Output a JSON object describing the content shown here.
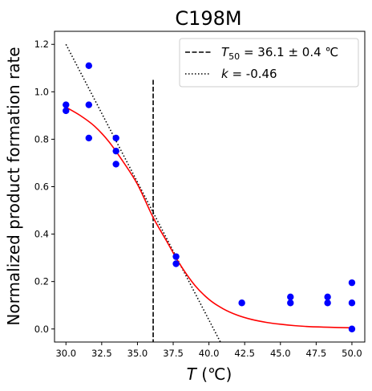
{
  "chart_data": {
    "type": "scatter",
    "title": "C198M",
    "xlabel_main": "T",
    "xlabel_unit": " (℃)",
    "ylabel": "Normalized product formation rate",
    "xlim": [
      29.2,
      50.9
    ],
    "ylim": [
      -0.055,
      1.255
    ],
    "x_ticks": [
      30.0,
      32.5,
      35.0,
      37.5,
      40.0,
      42.5,
      45.0,
      47.5,
      50.0
    ],
    "x_tick_labels": [
      "30.0",
      "32.5",
      "35.0",
      "37.5",
      "40.0",
      "42.5",
      "45.0",
      "47.5",
      "50.0"
    ],
    "y_ticks": [
      0.0,
      0.2,
      0.4,
      0.6,
      0.8,
      1.0,
      1.2
    ],
    "y_tick_labels": [
      "0.0",
      "0.2",
      "0.4",
      "0.6",
      "0.8",
      "1.0",
      "1.2"
    ],
    "grid": false,
    "legend_position": "top-right",
    "colors": {
      "points": "#0000ff",
      "fit": "#ff0000",
      "lines": "#000000"
    },
    "points": [
      {
        "x": 30.0,
        "y": 0.945
      },
      {
        "x": 30.0,
        "y": 0.92
      },
      {
        "x": 31.6,
        "y": 1.11
      },
      {
        "x": 31.6,
        "y": 0.945
      },
      {
        "x": 31.6,
        "y": 0.805
      },
      {
        "x": 33.5,
        "y": 0.805
      },
      {
        "x": 33.5,
        "y": 0.75
      },
      {
        "x": 33.5,
        "y": 0.695
      },
      {
        "x": 37.7,
        "y": 0.305
      },
      {
        "x": 37.7,
        "y": 0.275
      },
      {
        "x": 42.3,
        "y": 0.11
      },
      {
        "x": 45.7,
        "y": 0.135
      },
      {
        "x": 45.7,
        "y": 0.11
      },
      {
        "x": 48.3,
        "y": 0.135
      },
      {
        "x": 48.3,
        "y": 0.11
      },
      {
        "x": 50.0,
        "y": 0.195
      },
      {
        "x": 50.0,
        "y": 0.11
      },
      {
        "x": 50.0,
        "y": 0.0
      }
    ],
    "fit_curve": {
      "x": [
        30.0,
        31.0,
        32.0,
        33.0,
        34.0,
        35.0,
        36.1,
        37.0,
        38.0,
        39.0,
        40.0,
        41.0,
        42.0,
        43.0,
        44.0,
        45.0,
        46.0,
        47.0,
        48.0,
        49.0,
        50.0
      ],
      "y": [
        0.935,
        0.9,
        0.855,
        0.79,
        0.705,
        0.61,
        0.47,
        0.375,
        0.27,
        0.185,
        0.125,
        0.085,
        0.058,
        0.04,
        0.028,
        0.02,
        0.014,
        0.01,
        0.008,
        0.006,
        0.005
      ]
    },
    "t50": {
      "value": 36.1,
      "y_range": [
        -0.055,
        1.05
      ]
    },
    "slope_line": {
      "x": [
        30.0,
        40.8
      ],
      "y": [
        1.2,
        -0.055
      ]
    },
    "legend": {
      "t50_sym": "T",
      "t50_sub": "50",
      "t50_rest": " = 36.1 ± 0.4 ℃",
      "k_sym": "k",
      "k_rest": " = -0.46"
    }
  }
}
